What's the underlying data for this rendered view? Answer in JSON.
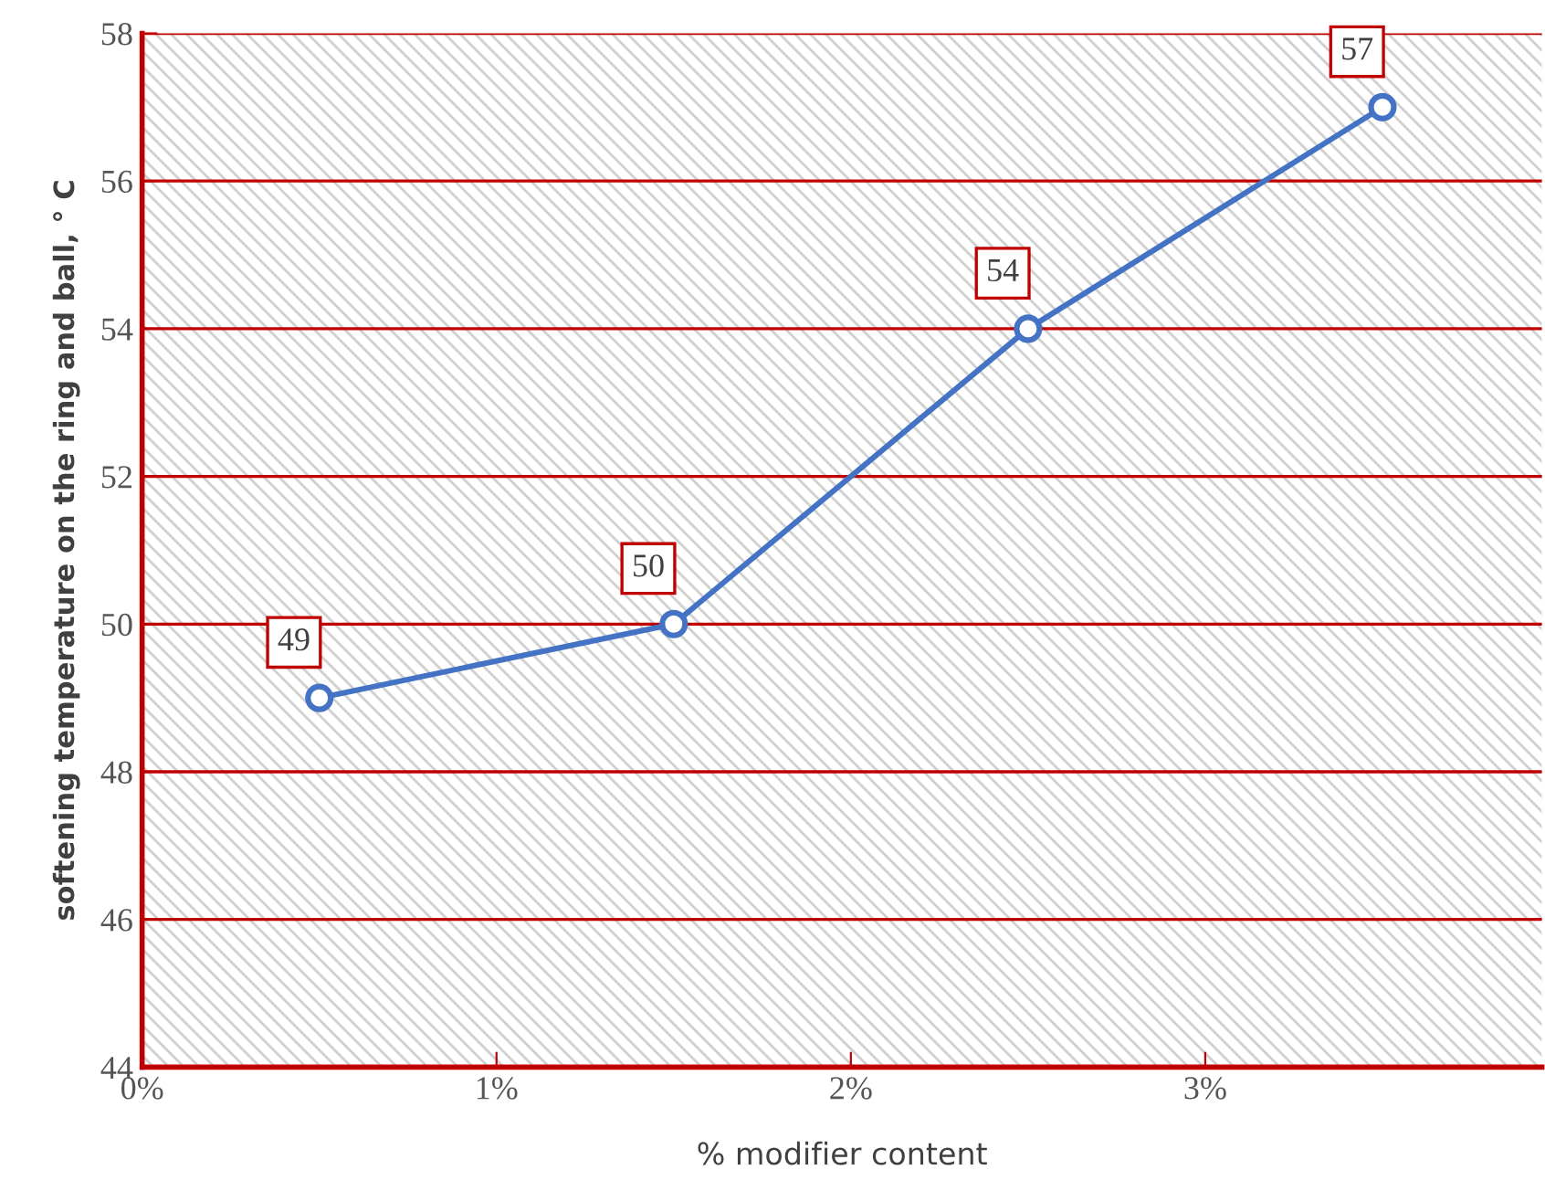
{
  "chart_data": {
    "type": "line",
    "xlabel": "% modifier content",
    "ylabel": "softening temperature on the ring and ball, ° C",
    "x": [
      0.5,
      1.5,
      2.5,
      3.5
    ],
    "series": [
      {
        "color": "#4472c4",
        "values": [
          49,
          50,
          54,
          57
        ]
      }
    ],
    "xlim": [
      0,
      3.95
    ],
    "xticks": [
      {
        "value": 0,
        "label": "0%"
      },
      {
        "value": 1,
        "label": "1%"
      },
      {
        "value": 2,
        "label": "2%"
      },
      {
        "value": 3,
        "label": "3%"
      }
    ],
    "ylim": [
      44,
      58
    ],
    "yticks": [
      44,
      46,
      48,
      50,
      52,
      54,
      56,
      58
    ],
    "grid": "y",
    "marker": "circle",
    "line_style": "solid",
    "data_labels": true,
    "legend": false
  }
}
